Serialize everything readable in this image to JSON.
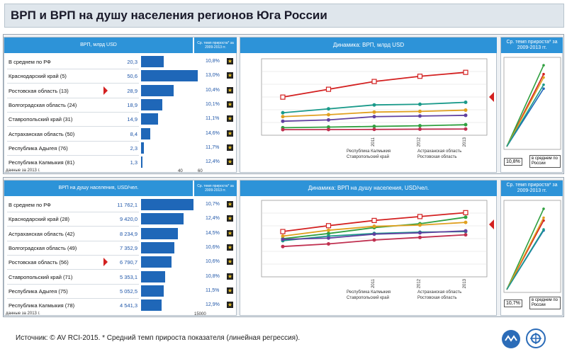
{
  "title": "ВРП и ВРП на душу населения регионов Юга России",
  "source": "Источник: © AV RCI-2015.  * Средний темп прироста показателя (линейная регрессия).",
  "colors": {
    "header_blue": "#2d93d8",
    "bar_blue": "#1f67b8",
    "marker_red": "#d32020"
  },
  "top": {
    "table_header": "ВРП, млрд USD",
    "growth_header": "Ср. темп прироста* за 2009-2013 гг.",
    "footnote": "данные за 2013 г.",
    "ticks": [
      "40",
      "60"
    ],
    "rows": [
      {
        "label": "В среднем по РФ",
        "value": "20,3",
        "growth": "10,8%"
      },
      {
        "label": "Краснодарский край (5)",
        "value": "50,6",
        "growth": "13,0%"
      },
      {
        "label": "Ростовская область (13)",
        "value": "28,9",
        "growth": "10,4%"
      },
      {
        "label": "Волгоградская область (24)",
        "value": "18,9",
        "growth": "10,1%"
      },
      {
        "label": "Ставропольский край (31)",
        "value": "14,9",
        "growth": "11,1%"
      },
      {
        "label": "Астраханская область (50)",
        "value": "8,4",
        "growth": "14,6%"
      },
      {
        "label": "Республика Адыгея (76)",
        "value": "2,3",
        "growth": "11,7%"
      },
      {
        "label": "Республика Калмыкия (81)",
        "value": "1,3",
        "growth": "12,4%"
      }
    ],
    "dynamics_header": "Динамика: ВРП, млрд USD",
    "legend": [
      "Республика Калмыкия",
      "Ставропольский край",
      "Астраханская область",
      "Ростовская область"
    ],
    "rate_header": "Ср. темп прироста* за 2009-2013 гг.",
    "rate_label": "10,8%",
    "rate_caption": "в среднем по России"
  },
  "bottom": {
    "table_header": "ВРП на душу населения, USD/чел.",
    "growth_header": "Ср. темп прироста* за 2009-2013 гг.",
    "footnote": "данные за 2013 г.",
    "ticks": [
      "15000"
    ],
    "rows": [
      {
        "label": "В среднем по РФ",
        "value": "11 762,1",
        "growth": "10,7%"
      },
      {
        "label": "Краснодарский край (28)",
        "value": "9 420,0",
        "growth": "12,4%"
      },
      {
        "label": "Астраханская область (42)",
        "value": "8 234,9",
        "growth": "14,5%"
      },
      {
        "label": "Волгоградская область (49)",
        "value": "7 352,9",
        "growth": "10,6%"
      },
      {
        "label": "Ростовская область (56)",
        "value": "6 790,7",
        "growth": "10,6%"
      },
      {
        "label": "Ставропольский край (71)",
        "value": "5 353,1",
        "growth": "10,8%"
      },
      {
        "label": "Республика Адыгея (75)",
        "value": "5 052,5",
        "growth": "11,5%"
      },
      {
        "label": "Республика Калмыкия (78)",
        "value": "4 541,3",
        "growth": "12,9%"
      }
    ],
    "dynamics_header": "Динамика: ВРП на душу населения, USD/чел.",
    "legend": [
      "Республика Калмыкия",
      "Ставропольский край",
      "Астраханская область",
      "Ростовская область"
    ],
    "rate_header": "Ср. темп прироста* за 2009-2013 гг.",
    "rate_label": "10,7%",
    "rate_caption": "в среднем по России"
  },
  "chart_data": [
    {
      "type": "bar",
      "categories": [
        "В среднем по РФ",
        "Краснодарский край (5)",
        "Ростовская область (13)",
        "Волгоградская область (24)",
        "Ставропольский край (31)",
        "Астраханская область (50)",
        "Республика Адыгея (76)",
        "Республика Калмыкия (81)"
      ],
      "values": [
        20.3,
        50.6,
        28.9,
        18.9,
        14.9,
        8.4,
        2.3,
        1.3
      ],
      "title": "ВРП, млрд USD",
      "xlim": [
        0,
        60
      ]
    },
    {
      "type": "line",
      "title": "Динамика: ВРП, млрд USD",
      "x": [
        "2009",
        "2010",
        "2011",
        "2012",
        "2013"
      ],
      "tick_labels_x": [
        "2011",
        "2012",
        "2013"
      ],
      "series": [
        {
          "color": "#d32020",
          "values": [
            26,
            32,
            38,
            42,
            45
          ]
        },
        {
          "color": "#1a9a8a",
          "values": [
            14,
            17,
            20,
            20.5,
            22
          ]
        },
        {
          "color": "#e0a020",
          "values": [
            11,
            12.5,
            14.5,
            15,
            16
          ]
        },
        {
          "color": "#6040a0",
          "values": [
            7.5,
            8.5,
            11,
            11.5,
            12
          ]
        },
        {
          "color": "#30a040",
          "values": [
            2.5,
            3,
            3.5,
            4,
            4.8
          ]
        },
        {
          "color": "#c03050",
          "values": [
            1,
            1.1,
            1.2,
            1.4,
            1.5
          ]
        }
      ]
    },
    {
      "type": "bar",
      "categories": [
        "В среднем по РФ",
        "Краснодарский край (28)",
        "Астраханская область (42)",
        "Волгоградская область (49)",
        "Ростовская область (56)",
        "Ставропольский край (71)",
        "Республика Адыгея (75)",
        "Республика Калмыкия (78)"
      ],
      "values": [
        11762.1,
        9420.0,
        8234.9,
        7352.9,
        6790.7,
        5353.1,
        5052.5,
        4541.3
      ],
      "title": "ВРП на душу населения, USD/чел.",
      "xlim": [
        0,
        15000
      ]
    },
    {
      "type": "line",
      "title": "Динамика: ВРП на душу населения, USD/чел.",
      "x": [
        "2009",
        "2010",
        "2011",
        "2012",
        "2013"
      ],
      "tick_labels_x": [
        "2011",
        "2012",
        "2013"
      ],
      "series": [
        {
          "color": "#d32020",
          "values": [
            6300,
            7200,
            8000,
            8600,
            9200
          ]
        },
        {
          "color": "#30a040",
          "values": [
            5200,
            6000,
            6900,
            7500,
            8500
          ]
        },
        {
          "color": "#e0a020",
          "values": [
            5600,
            6500,
            7100,
            7300,
            7700
          ]
        },
        {
          "color": "#1a9a8a",
          "values": [
            4900,
            5600,
            6000,
            6200,
            6300
          ]
        },
        {
          "color": "#6040a0",
          "values": [
            5100,
            5300,
            5900,
            6100,
            6400
          ]
        },
        {
          "color": "#c03050",
          "values": [
            4000,
            4400,
            5000,
            5400,
            5800
          ]
        }
      ]
    },
    {
      "type": "line",
      "title": "Ср. темп прироста* за 2009-2013 гг.",
      "x": [
        "2009",
        "2013"
      ],
      "series": [
        {
          "color": "#d32020",
          "values": [
            0,
            13.0
          ]
        },
        {
          "color": "#1f67b8",
          "values": [
            0,
            10.4
          ]
        },
        {
          "color": "#30a040",
          "values": [
            0,
            14.6
          ]
        },
        {
          "color": "#e0a020",
          "values": [
            0,
            12.4
          ]
        },
        {
          "color": "#1a9a8a",
          "values": [
            0,
            11.1
          ]
        }
      ]
    },
    {
      "type": "line",
      "title": "Ср. темп прироста* за 2009-2013 гг.",
      "x": [
        "2009",
        "2013"
      ],
      "series": [
        {
          "color": "#d32020",
          "values": [
            0,
            12.4
          ]
        },
        {
          "color": "#1f67b8",
          "values": [
            0,
            10.6
          ]
        },
        {
          "color": "#30a040",
          "values": [
            0,
            14.5
          ]
        },
        {
          "color": "#e0a020",
          "values": [
            0,
            12.9
          ]
        },
        {
          "color": "#1a9a8a",
          "values": [
            0,
            10.8
          ]
        }
      ]
    }
  ]
}
